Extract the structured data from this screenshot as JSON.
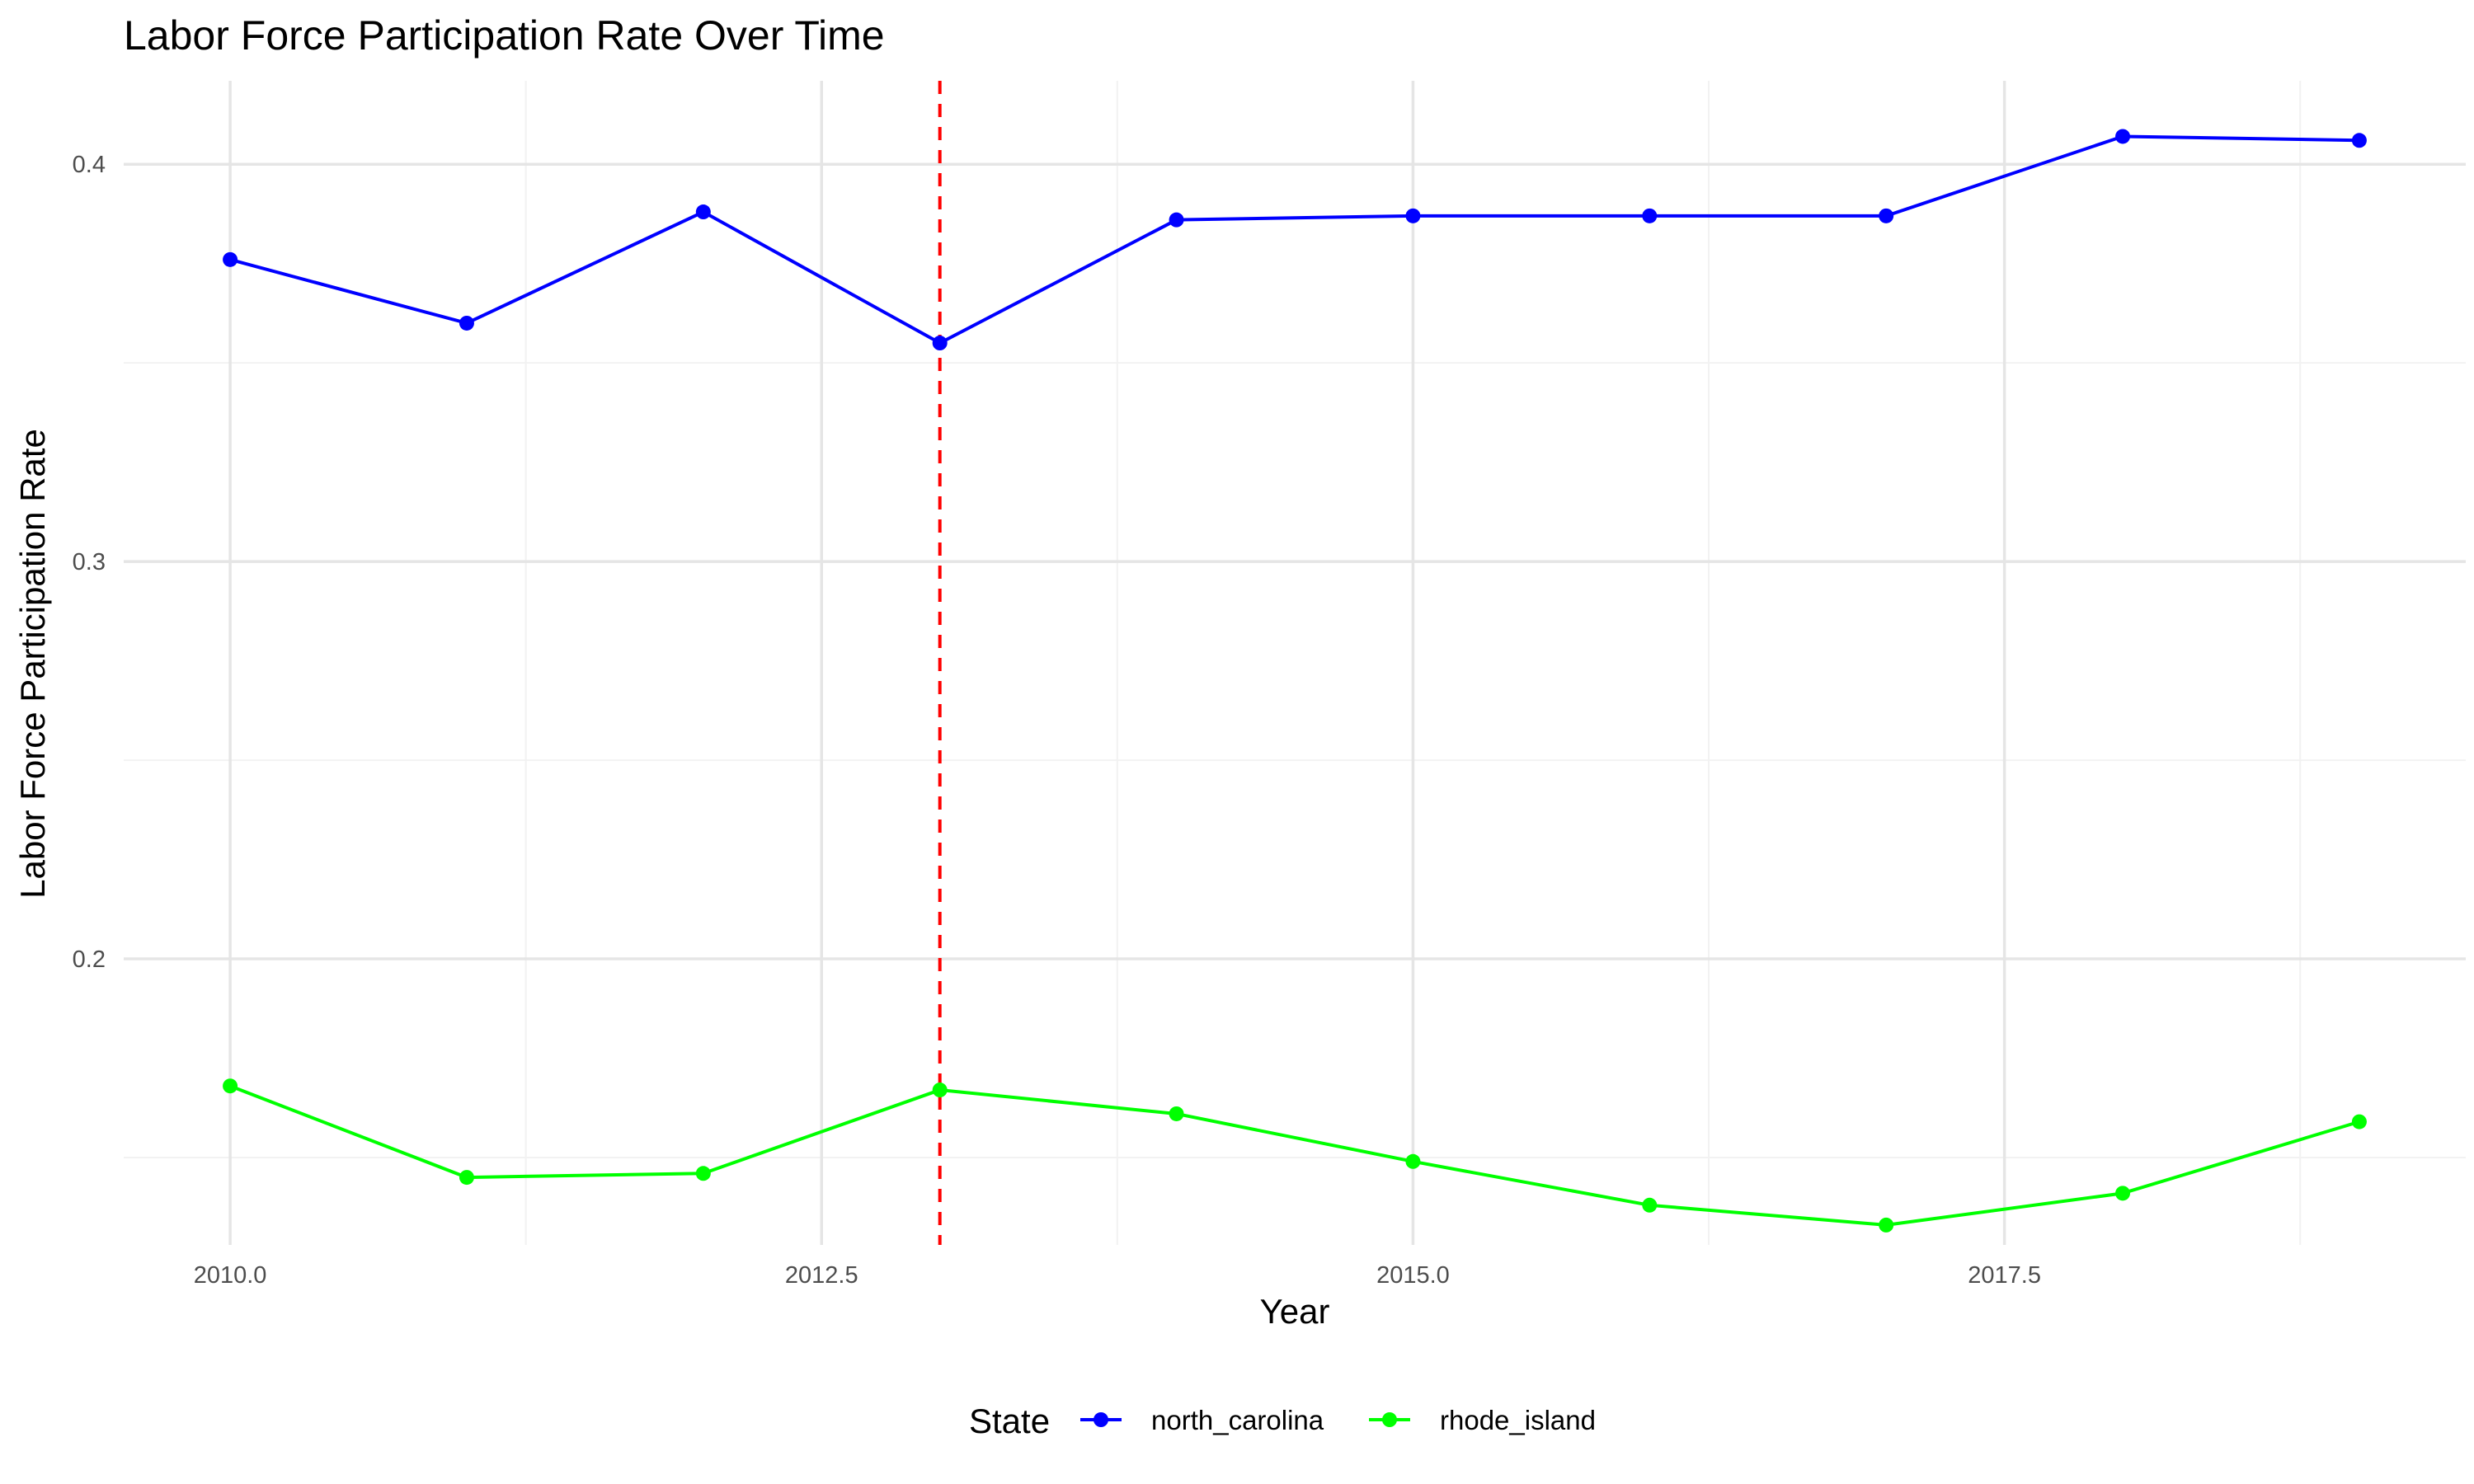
{
  "chart_data": {
    "type": "line",
    "title": "Labor Force Participation Rate Over Time",
    "xlabel": "Year",
    "ylabel": "Labor Force Participation Rate",
    "x": [
      2010,
      2011,
      2012,
      2013,
      2014,
      2015,
      2016,
      2017,
      2018,
      2019
    ],
    "x_ticks": [
      2010.0,
      2012.5,
      2015.0,
      2017.5
    ],
    "x_tick_labels": [
      "2010.0",
      "2012.5",
      "2015.0",
      "2017.5"
    ],
    "xlim": [
      2009.55,
      2019.45
    ],
    "y_ticks": [
      0.2,
      0.3,
      0.4
    ],
    "y_tick_labels": [
      "0.2",
      "0.3",
      "0.4"
    ],
    "ylim": [
      0.128,
      0.421
    ],
    "series": [
      {
        "name": "north_carolina",
        "color": "#0000ff",
        "values": [
          0.376,
          0.36,
          0.388,
          0.355,
          0.386,
          0.387,
          0.387,
          0.387,
          0.407,
          0.406
        ]
      },
      {
        "name": "rhode_island",
        "color": "#00ff00",
        "values": [
          0.168,
          0.145,
          0.146,
          0.167,
          0.161,
          0.149,
          0.138,
          0.133,
          0.141,
          0.159
        ]
      }
    ],
    "reference_line": {
      "axis": "x",
      "value": 2013,
      "color": "#ff0000",
      "style": "dashed"
    },
    "legend": {
      "title": "State",
      "position": "bottom"
    },
    "grid": true
  }
}
